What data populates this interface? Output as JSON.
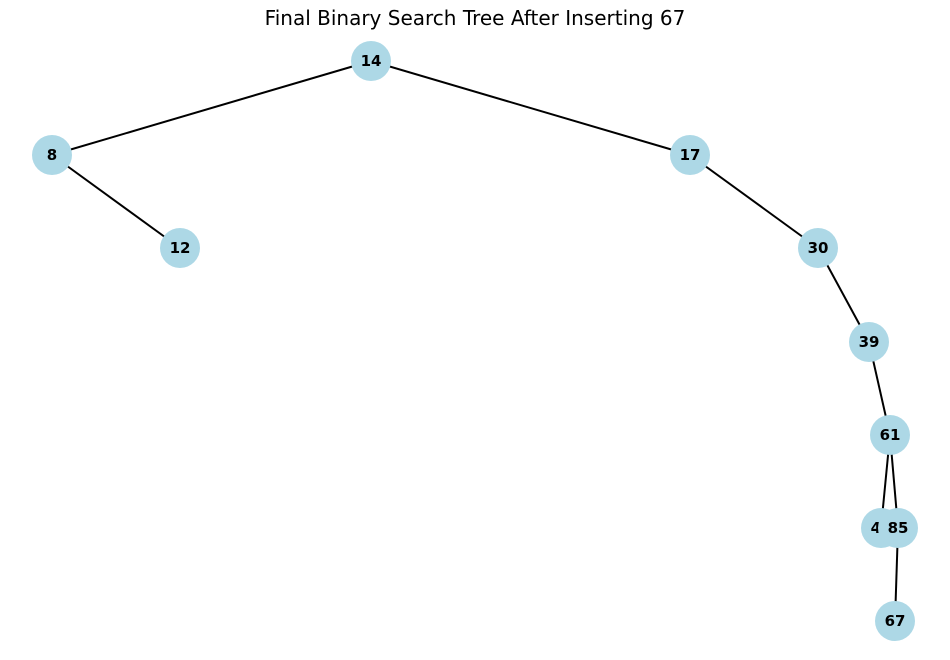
{
  "title": "Final Binary Search Tree After Inserting 67",
  "colors": {
    "node_fill": "#add8e6",
    "edge": "#000000",
    "label": "#000000"
  },
  "tree": {
    "nodes": [
      {
        "id": "14",
        "label": "14"
      },
      {
        "id": "8",
        "label": "8"
      },
      {
        "id": "17",
        "label": "17"
      },
      {
        "id": "12",
        "label": "12"
      },
      {
        "id": "30",
        "label": "30"
      },
      {
        "id": "39",
        "label": "39"
      },
      {
        "id": "61",
        "label": "61"
      },
      {
        "id": "48",
        "label": "48"
      },
      {
        "id": "85",
        "label": "85"
      },
      {
        "id": "67",
        "label": "67"
      }
    ],
    "edges": [
      {
        "from": "14",
        "to": "8"
      },
      {
        "from": "14",
        "to": "17"
      },
      {
        "from": "8",
        "to": "12"
      },
      {
        "from": "17",
        "to": "30"
      },
      {
        "from": "30",
        "to": "39"
      },
      {
        "from": "39",
        "to": "61"
      },
      {
        "from": "61",
        "to": "48"
      },
      {
        "from": "61",
        "to": "85"
      },
      {
        "from": "85",
        "to": "67"
      }
    ]
  }
}
